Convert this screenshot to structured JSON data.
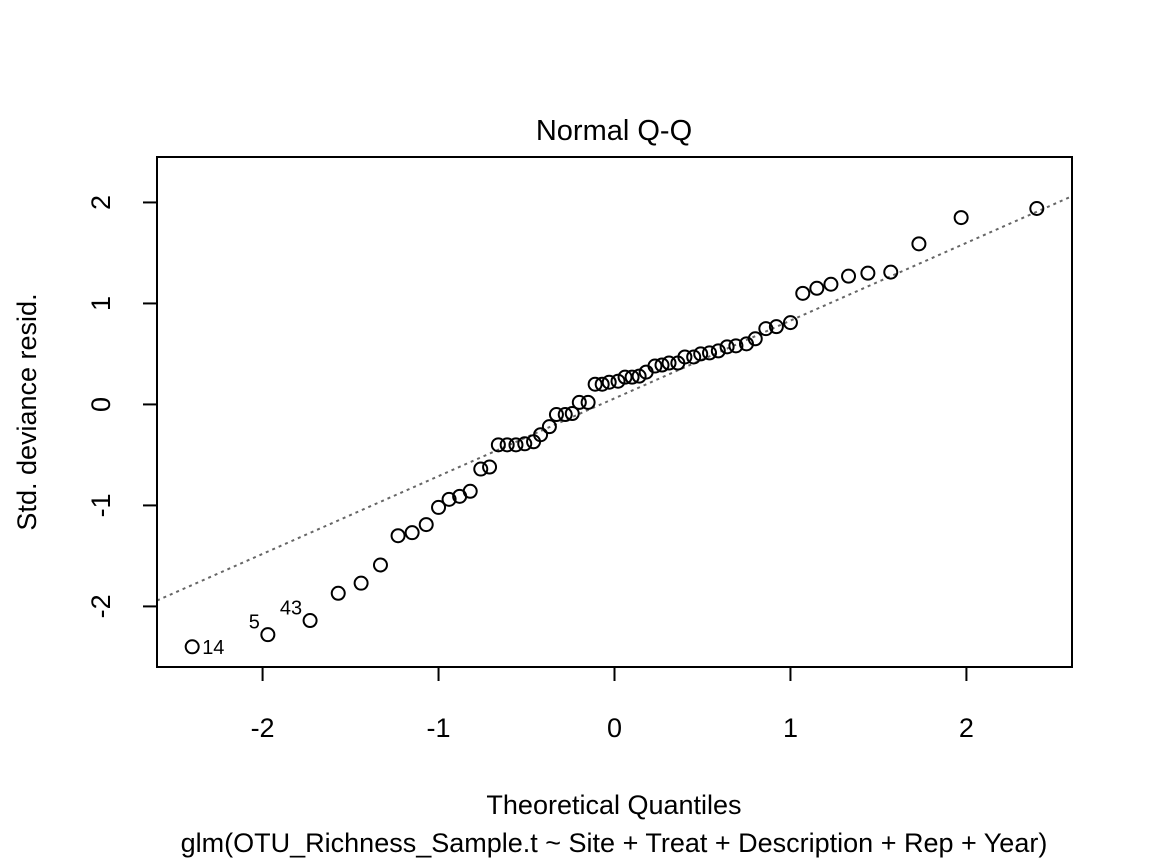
{
  "chart_data": {
    "type": "scatter",
    "title": "Normal Q-Q",
    "xlabel": "Theoretical Quantiles",
    "ylabel": "Std. deviance resid.",
    "subtitle": "glm(OTU_Richness_Sample.t ~ Site + Treat + Description + Rep + Year)",
    "xlim": [
      -2.6,
      2.6
    ],
    "ylim": [
      -2.6,
      2.45
    ],
    "xticks": [
      -2,
      -1,
      0,
      1,
      2
    ],
    "xtick_labels": [
      "-2",
      "-1",
      "0",
      "1",
      "2"
    ],
    "yticks": [
      -2,
      -1,
      0,
      1,
      2
    ],
    "ytick_labels": [
      "-2",
      "-1",
      "0",
      "1",
      "2"
    ],
    "reference_line": {
      "style": "dotted",
      "color": "#666666",
      "slope": 0.77,
      "intercept": 0.06
    },
    "point_labels": [
      {
        "text": "14",
        "x": -2.4,
        "y": -2.4,
        "side": "right"
      },
      {
        "text": "5",
        "x": -1.97,
        "y": -2.28,
        "side": "left"
      },
      {
        "text": "43",
        "x": -1.73,
        "y": -2.14,
        "side": "left"
      }
    ],
    "points": [
      [
        -2.4,
        -2.4
      ],
      [
        -1.97,
        -2.28
      ],
      [
        -1.73,
        -2.14
      ],
      [
        -1.57,
        -1.87
      ],
      [
        -1.44,
        -1.77
      ],
      [
        -1.33,
        -1.59
      ],
      [
        -1.23,
        -1.3
      ],
      [
        -1.15,
        -1.27
      ],
      [
        -1.07,
        -1.19
      ],
      [
        -1.0,
        -1.02
      ],
      [
        -0.94,
        -0.94
      ],
      [
        -0.88,
        -0.91
      ],
      [
        -0.82,
        -0.86
      ],
      [
        -0.76,
        -0.64
      ],
      [
        -0.71,
        -0.62
      ],
      [
        -0.66,
        -0.4
      ],
      [
        -0.61,
        -0.4
      ],
      [
        -0.56,
        -0.4
      ],
      [
        -0.51,
        -0.39
      ],
      [
        -0.46,
        -0.37
      ],
      [
        -0.42,
        -0.3
      ],
      [
        -0.37,
        -0.22
      ],
      [
        -0.33,
        -0.1
      ],
      [
        -0.28,
        -0.1
      ],
      [
        -0.24,
        -0.09
      ],
      [
        -0.2,
        0.02
      ],
      [
        -0.15,
        0.02
      ],
      [
        -0.11,
        0.2
      ],
      [
        -0.07,
        0.2
      ],
      [
        -0.03,
        0.22
      ],
      [
        0.02,
        0.23
      ],
      [
        0.06,
        0.27
      ],
      [
        0.1,
        0.27
      ],
      [
        0.14,
        0.28
      ],
      [
        0.18,
        0.32
      ],
      [
        0.23,
        0.38
      ],
      [
        0.27,
        0.39
      ],
      [
        0.31,
        0.41
      ],
      [
        0.36,
        0.41
      ],
      [
        0.4,
        0.47
      ],
      [
        0.45,
        0.47
      ],
      [
        0.49,
        0.5
      ],
      [
        0.54,
        0.51
      ],
      [
        0.59,
        0.53
      ],
      [
        0.64,
        0.57
      ],
      [
        0.69,
        0.58
      ],
      [
        0.75,
        0.6
      ],
      [
        0.8,
        0.65
      ],
      [
        0.86,
        0.75
      ],
      [
        0.92,
        0.77
      ],
      [
        1.0,
        0.81
      ],
      [
        1.07,
        1.1
      ],
      [
        1.15,
        1.15
      ],
      [
        1.23,
        1.19
      ],
      [
        1.33,
        1.27
      ],
      [
        1.44,
        1.3
      ],
      [
        1.57,
        1.31
      ],
      [
        1.73,
        1.59
      ],
      [
        1.97,
        1.85
      ],
      [
        2.4,
        1.94
      ]
    ]
  }
}
